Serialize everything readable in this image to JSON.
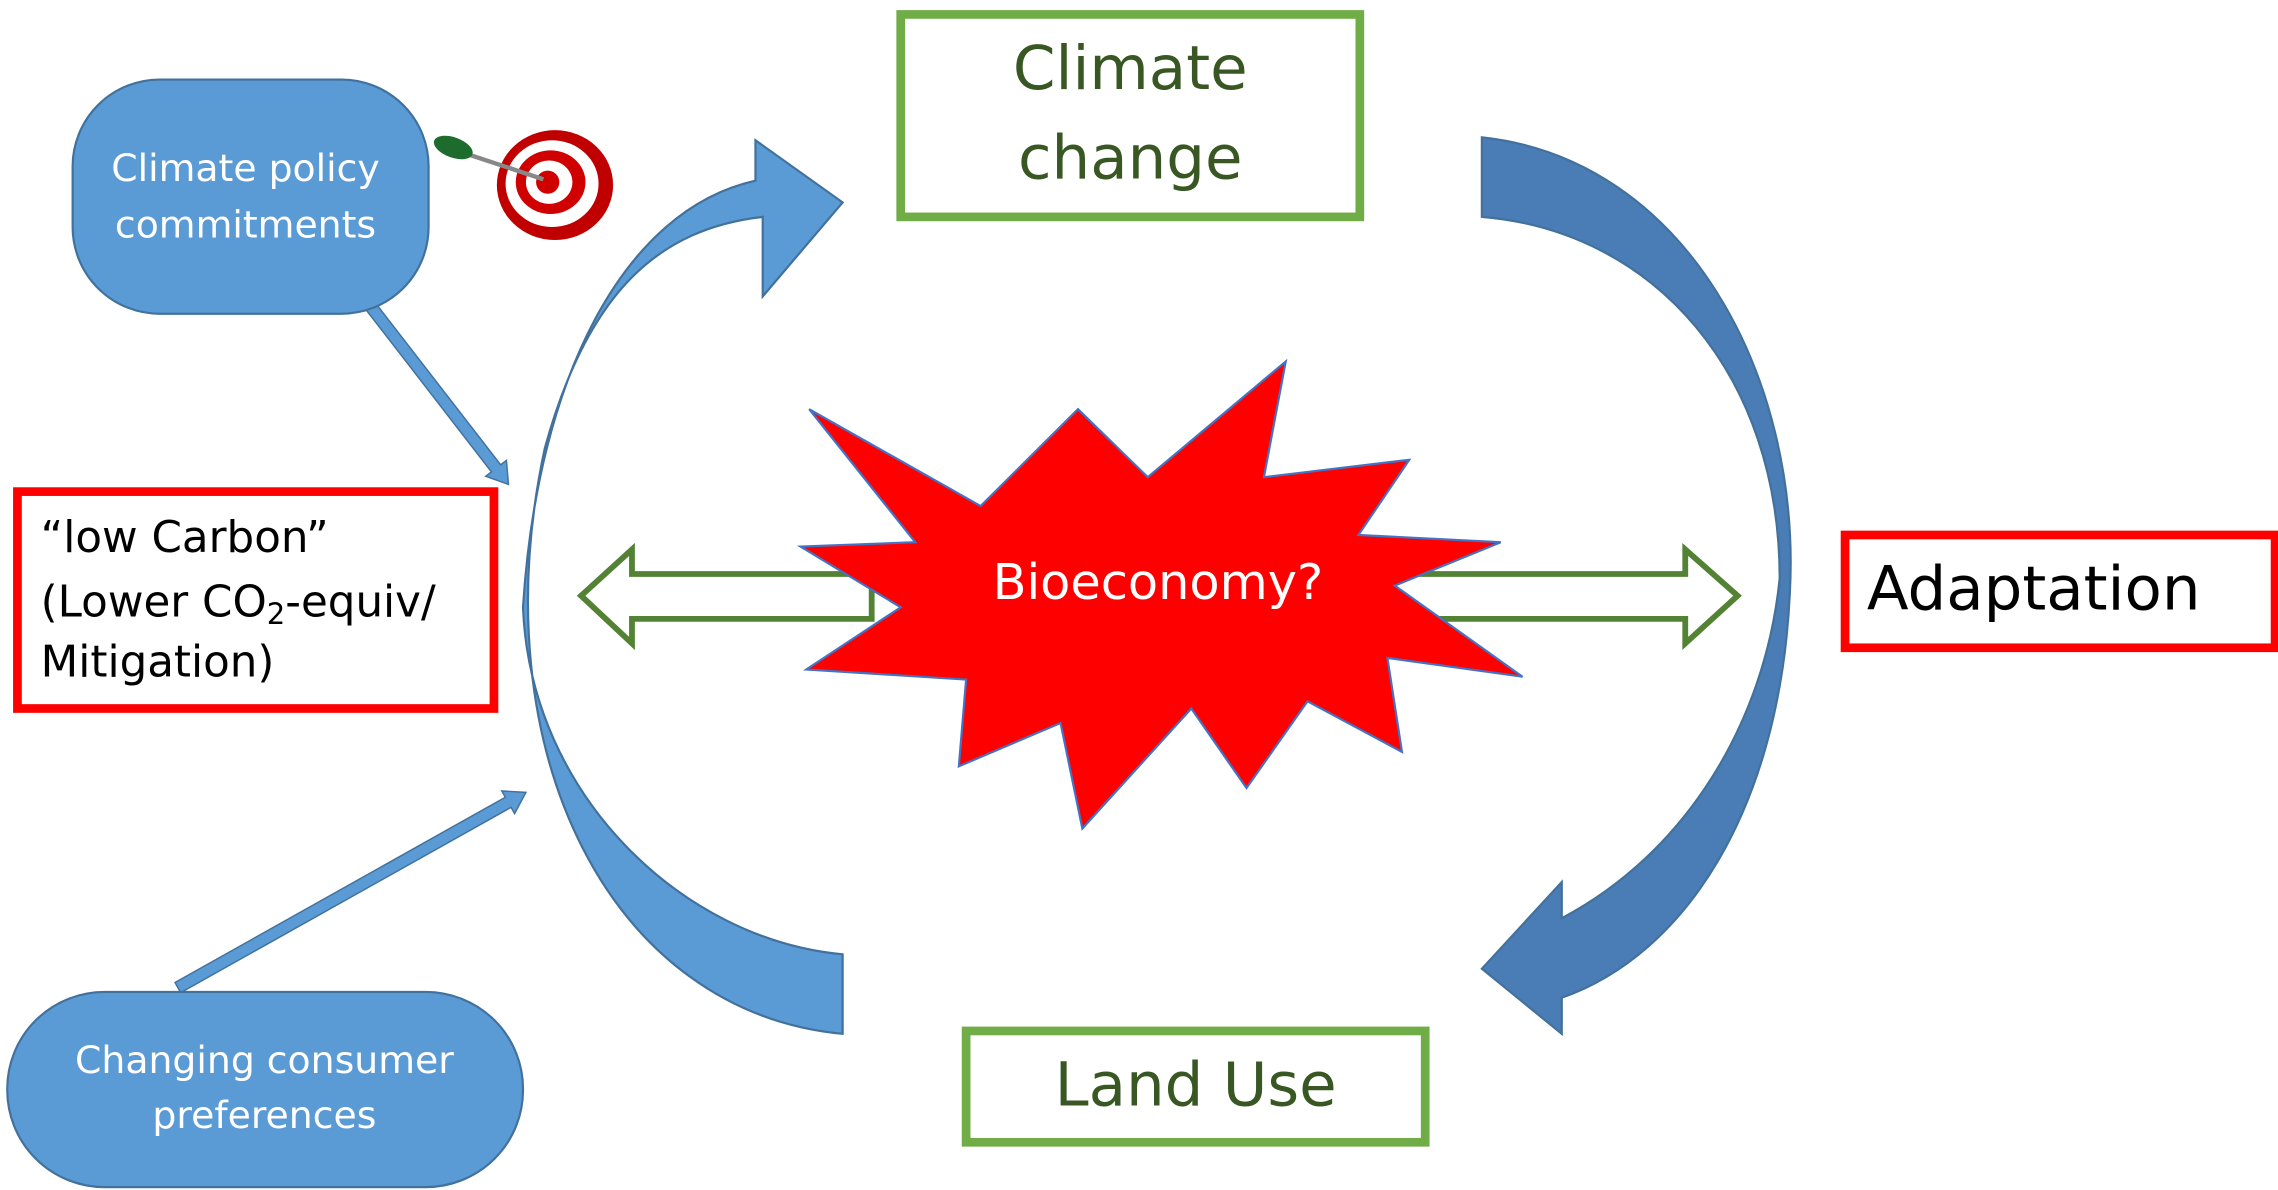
{
  "nodes": [
    {
      "label_lines": [
        "Climate",
        "change"
      ]
    },
    {
      "label_lines": [
        "Land Use"
      ]
    },
    {
      "label_lines": [
        "Adaptation"
      ]
    },
    {
      "label_lines": [
        "“low Carbon”",
        "(Lower CO",
        "2",
        "-equiv/",
        "Mitigation)"
      ]
    },
    {
      "label_lines": [
        "Climate policy",
        "commitments"
      ]
    },
    {
      "label_lines": [
        "Changing consumer",
        "preferences"
      ]
    },
    {
      "label_lines": [
        "Bioeconomy?"
      ]
    }
  ]
}
